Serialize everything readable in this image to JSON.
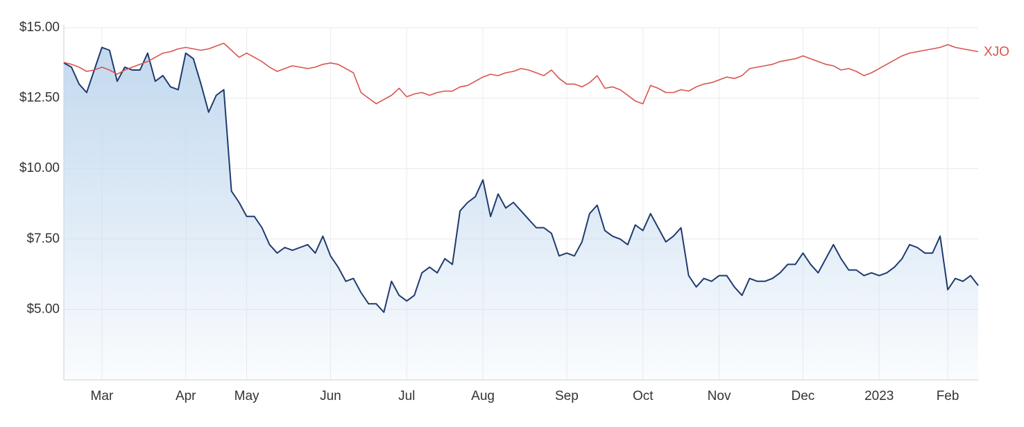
{
  "chart_data": {
    "type": "line",
    "categories": [
      null,
      null,
      null,
      null,
      null,
      "Mar",
      null,
      null,
      null,
      null,
      null,
      null,
      null,
      null,
      null,
      null,
      "Apr",
      null,
      null,
      null,
      null,
      null,
      null,
      null,
      "May",
      null,
      null,
      null,
      null,
      null,
      null,
      null,
      null,
      null,
      null,
      "Jun",
      null,
      null,
      null,
      null,
      null,
      null,
      null,
      null,
      null,
      "Jul",
      null,
      null,
      null,
      null,
      null,
      null,
      null,
      null,
      null,
      "Aug",
      null,
      null,
      null,
      null,
      null,
      null,
      null,
      null,
      null,
      null,
      "Sep",
      null,
      null,
      null,
      null,
      null,
      null,
      null,
      null,
      null,
      "Oct",
      null,
      null,
      null,
      null,
      null,
      null,
      null,
      null,
      null,
      "Nov",
      null,
      null,
      null,
      null,
      null,
      null,
      null,
      null,
      null,
      null,
      "Dec",
      null,
      null,
      null,
      null,
      null,
      null,
      null,
      null,
      null,
      "2023",
      null,
      null,
      null,
      null,
      null,
      null,
      null,
      null,
      "Feb",
      null,
      null,
      null,
      null
    ],
    "series": [
      {
        "color": "#1f3a6e",
        "fill": true,
        "values": [
          13.75,
          13.6,
          13.0,
          12.7,
          13.5,
          14.3,
          14.2,
          13.1,
          13.6,
          13.5,
          13.5,
          14.1,
          13.1,
          13.3,
          12.9,
          12.8,
          14.1,
          13.9,
          13.0,
          12.0,
          12.6,
          12.8,
          9.2,
          8.8,
          8.3,
          8.3,
          7.9,
          7.3,
          7.0,
          7.2,
          7.1,
          7.2,
          7.3,
          7.0,
          7.6,
          6.9,
          6.5,
          6.0,
          6.1,
          5.6,
          5.2,
          5.2,
          4.9,
          6.0,
          5.5,
          5.3,
          5.5,
          6.3,
          6.5,
          6.3,
          6.8,
          6.6,
          8.5,
          8.8,
          9.0,
          9.6,
          8.3,
          9.1,
          8.6,
          8.8,
          8.5,
          8.2,
          7.9,
          7.9,
          7.7,
          6.9,
          7.0,
          6.9,
          7.4,
          8.4,
          8.7,
          7.8,
          7.6,
          7.5,
          7.3,
          8.0,
          7.8,
          8.4,
          7.9,
          7.4,
          7.6,
          7.9,
          6.2,
          5.8,
          6.1,
          6.0,
          6.2,
          6.2,
          5.8,
          5.5,
          6.1,
          6.0,
          6.0,
          6.1,
          6.3,
          6.6,
          6.6,
          7.0,
          6.6,
          6.3,
          6.8,
          7.3,
          6.8,
          6.4,
          6.4,
          6.2,
          6.3,
          6.2,
          6.3,
          6.5,
          6.8,
          7.3,
          7.2,
          7.0,
          7.0,
          7.6,
          5.7,
          6.1,
          6.0,
          6.2,
          5.85
        ]
      },
      {
        "name": "XJO",
        "color": "#d9534f",
        "values": [
          13.77,
          13.7,
          13.6,
          13.45,
          13.5,
          13.6,
          13.5,
          13.35,
          13.5,
          13.6,
          13.7,
          13.8,
          13.95,
          14.1,
          14.15,
          14.25,
          14.3,
          14.25,
          14.2,
          14.25,
          14.35,
          14.45,
          14.2,
          13.95,
          14.1,
          13.95,
          13.8,
          13.6,
          13.45,
          13.55,
          13.65,
          13.6,
          13.55,
          13.6,
          13.7,
          13.75,
          13.7,
          13.55,
          13.4,
          12.7,
          12.5,
          12.3,
          12.45,
          12.6,
          12.85,
          12.55,
          12.65,
          12.7,
          12.6,
          12.7,
          12.75,
          12.75,
          12.9,
          12.95,
          13.1,
          13.25,
          13.35,
          13.3,
          13.4,
          13.45,
          13.55,
          13.5,
          13.4,
          13.3,
          13.5,
          13.2,
          13.0,
          13.0,
          12.9,
          13.05,
          13.3,
          12.85,
          12.9,
          12.8,
          12.6,
          12.4,
          12.3,
          12.95,
          12.85,
          12.7,
          12.7,
          12.8,
          12.75,
          12.9,
          13.0,
          13.05,
          13.15,
          13.25,
          13.2,
          13.3,
          13.55,
          13.6,
          13.65,
          13.7,
          13.8,
          13.85,
          13.9,
          14.0,
          13.9,
          13.8,
          13.7,
          13.65,
          13.5,
          13.55,
          13.45,
          13.3,
          13.4,
          13.55,
          13.7,
          13.85,
          14.0,
          14.1,
          14.15,
          14.2,
          14.25,
          14.3,
          14.4,
          14.3,
          14.25,
          14.2,
          14.15
        ]
      }
    ],
    "ylim": [
      2.5,
      15
    ],
    "yticks": [
      {
        "value": 5,
        "label": "$5.00"
      },
      {
        "value": 7.5,
        "label": "$7.50"
      },
      {
        "value": 10,
        "label": "$10.00"
      },
      {
        "value": 12.5,
        "label": "$12.50"
      },
      {
        "value": 15,
        "label": "$15.00"
      }
    ],
    "grid": true
  }
}
